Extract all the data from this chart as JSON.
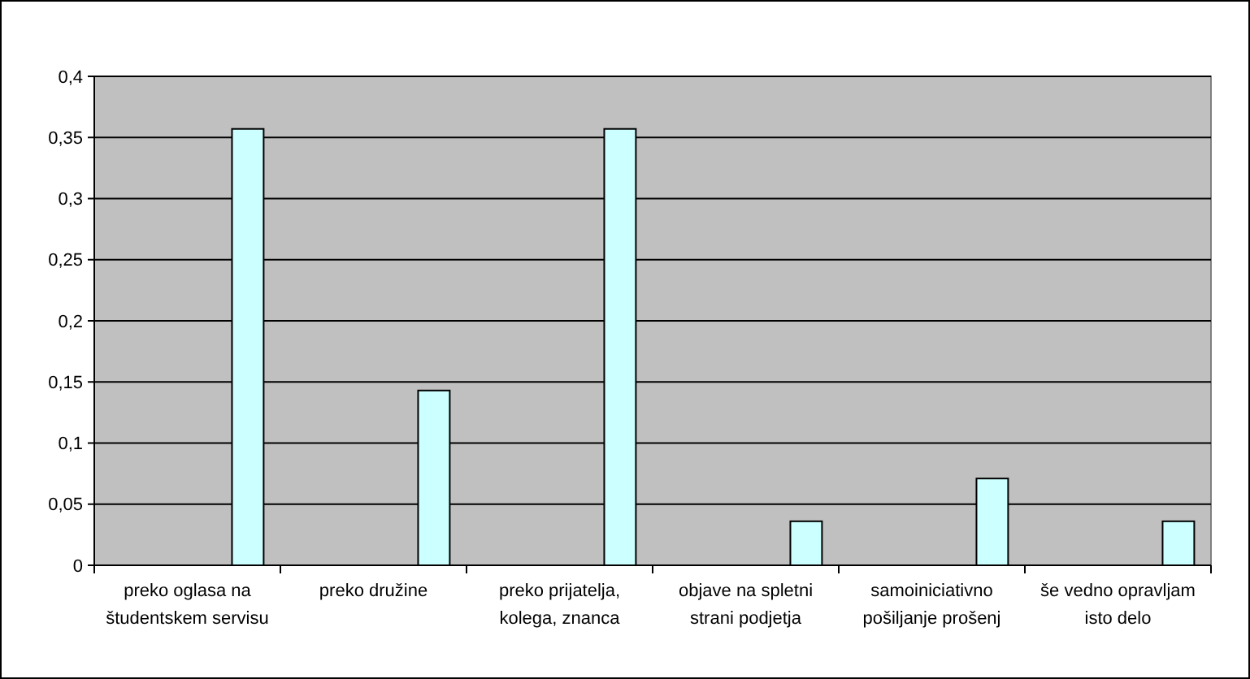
{
  "chart_data": {
    "type": "bar",
    "categories": [
      "preko oglasa na študentskem servisu",
      "preko družine",
      "preko prijatelja, kolega, znanca",
      "objave na spletni strani podjetja",
      "samoiniciativno pošiljanje prošenj",
      "še vedno opravljam isto delo"
    ],
    "values": [
      0.357,
      0.143,
      0.357,
      0.036,
      0.071,
      0.036
    ],
    "color": "#ccffff",
    "ylim": [
      0,
      0.4
    ],
    "yticks": [
      0,
      {
        "value": 0.05,
        "label": "0,05"
      },
      {
        "value": 0.1,
        "label": "0,1"
      },
      {
        "value": 0.15,
        "label": "0,15"
      },
      {
        "value": 0.2,
        "label": "0,2"
      },
      {
        "value": 0.25,
        "label": "0,25"
      },
      {
        "value": 0.3,
        "label": "0,3"
      },
      {
        "value": 0.35,
        "label": "0,35"
      },
      {
        "value": 0.4,
        "label": "0,4"
      }
    ],
    "grid": "y"
  }
}
